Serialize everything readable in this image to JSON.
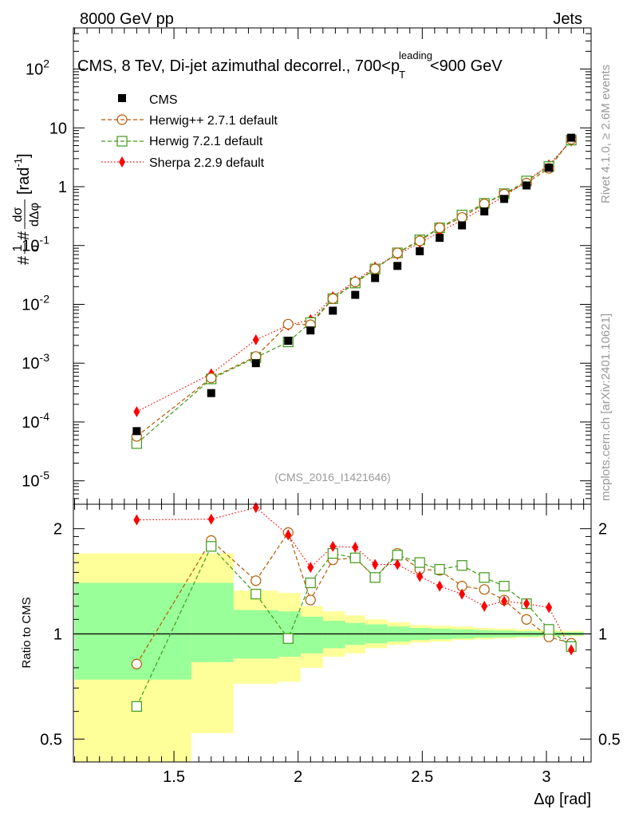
{
  "header": {
    "left_label": "8000 GeV pp",
    "right_label": "Jets",
    "title": "CMS, 8 TeV, Di-jet azimuthal decorrel., 700<p",
    "title_sup": "leading",
    "title_sub": "T",
    "title_end": "<900 GeV",
    "side_label_top": "Rivet 4.1.0, ≥ 2.6M events",
    "side_label_bottom": "mcplots.cern.ch [arXiv:2401.10621]",
    "analysis_id": "(CMS_2016_I1421646)"
  },
  "colors": {
    "cms": "#000000",
    "herwig271": "#b35900",
    "herwig721": "#3d9a19",
    "sherpa": "#ff0000",
    "band_yellow": "#ffff99",
    "band_green": "#99ff99"
  },
  "chart_data": [
    {
      "type": "scatter",
      "panel": "main",
      "ylabel": "#1/σ #dσ/dΔφ [rad⁻¹]",
      "ylabel_parts": {
        "a": "#",
        "one": "1",
        "sigma": "σ",
        "b": "#",
        "dsigma": "dσ",
        "dphi": "dΔφ",
        "unit": "[rad",
        "unit_exp": "-1",
        "unit_end": "]"
      },
      "yscale": "log",
      "ylim": [
        4e-06,
        500
      ],
      "xlim": [
        1.095,
        3.18
      ],
      "y_ticks": [
        {
          "v": 1e-05,
          "base": "10",
          "exp": "-5"
        },
        {
          "v": 0.0001,
          "base": "10",
          "exp": "-4"
        },
        {
          "v": 0.001,
          "base": "10",
          "exp": "-3"
        },
        {
          "v": 0.01,
          "base": "10",
          "exp": "-2"
        },
        {
          "v": 0.1,
          "base": "10",
          "exp": "-1"
        },
        {
          "v": 1,
          "base": "1",
          "exp": ""
        },
        {
          "v": 10,
          "base": "10",
          "exp": ""
        },
        {
          "v": 100,
          "base": "10",
          "exp": "2"
        }
      ],
      "legend": [
        "CMS",
        "Herwig++ 2.7.1 default",
        "Herwig 7.2.1 default",
        "Sherpa 2.2.9 default"
      ],
      "x": [
        1.35,
        1.65,
        1.83,
        1.96,
        2.05,
        2.14,
        2.23,
        2.31,
        2.4,
        2.49,
        2.57,
        2.66,
        2.75,
        2.83,
        2.92,
        3.01,
        3.1
      ],
      "series": [
        {
          "name": "CMS",
          "key": "cms",
          "marker": "square-filled",
          "values": [
            7e-05,
            0.00031,
            0.001,
            0.0024,
            0.0036,
            0.0078,
            0.0145,
            0.028,
            0.045,
            0.08,
            0.135,
            0.22,
            0.38,
            0.62,
            1.05,
            2.1,
            6.8
          ]
        },
        {
          "name": "Herwig++ 2.7.1 default",
          "key": "herwig271",
          "marker": "circle-open",
          "values": [
            5.7e-05,
            0.00056,
            0.0013,
            0.0046,
            0.0045,
            0.0125,
            0.024,
            0.04,
            0.075,
            0.12,
            0.2,
            0.3,
            0.51,
            0.75,
            1.15,
            2.05,
            6.4
          ]
        },
        {
          "name": "Herwig 7.2.1 default",
          "key": "herwig721",
          "marker": "square-open",
          "values": [
            4.3e-05,
            0.00054,
            0.00125,
            0.0023,
            0.0049,
            0.0125,
            0.023,
            0.04,
            0.075,
            0.125,
            0.2,
            0.33,
            0.52,
            0.76,
            1.25,
            2.2,
            6.2
          ]
        },
        {
          "name": "Sherpa 2.2.9 default",
          "key": "sherpa",
          "marker": "diamond-filled",
          "values": [
            0.00015,
            0.00066,
            0.0025,
            0.0044,
            0.0055,
            0.0135,
            0.025,
            0.043,
            0.071,
            0.11,
            0.17,
            0.27,
            0.44,
            0.68,
            1.25,
            2.35,
            6.0
          ]
        }
      ]
    },
    {
      "type": "line",
      "panel": "ratio",
      "ylabel": "Ratio to CMS",
      "xlabel": "Δφ [rad]",
      "yscale": "log",
      "ylim": [
        0.43,
        2.35
      ],
      "xlim": [
        1.095,
        3.18
      ],
      "x_ticks": [
        1.5,
        2,
        2.5,
        3
      ],
      "x_tick_labels": [
        "1.5",
        "2",
        "2.5",
        "3"
      ],
      "y_ticks": [
        0.5,
        1,
        2
      ],
      "y_tick_labels": [
        "0.5",
        "1",
        "2"
      ],
      "reference": 1,
      "bands": {
        "x_edges": [
          1.1,
          1.57,
          1.74,
          1.92,
          2.01,
          2.1,
          2.19,
          2.27,
          2.36,
          2.45,
          2.53,
          2.62,
          2.71,
          2.79,
          2.88,
          2.97,
          3.06,
          3.15
        ],
        "yellow": [
          [
            0.35,
            1.7
          ],
          [
            0.52,
            1.7
          ],
          [
            0.72,
            1.33
          ],
          [
            0.73,
            1.31
          ],
          [
            0.8,
            1.2
          ],
          [
            0.86,
            1.16
          ],
          [
            0.88,
            1.13
          ],
          [
            0.91,
            1.1
          ],
          [
            0.93,
            1.08
          ],
          [
            0.945,
            1.06
          ],
          [
            0.95,
            1.055
          ],
          [
            0.96,
            1.05
          ],
          [
            0.965,
            1.04
          ],
          [
            0.97,
            1.035
          ],
          [
            0.975,
            1.03
          ],
          [
            0.98,
            1.025
          ],
          [
            0.985,
            1.02
          ]
        ],
        "green": [
          [
            0.74,
            1.4
          ],
          [
            0.83,
            1.4
          ],
          [
            0.85,
            1.17
          ],
          [
            0.86,
            1.16
          ],
          [
            0.88,
            1.12
          ],
          [
            0.91,
            1.09
          ],
          [
            0.93,
            1.075
          ],
          [
            0.94,
            1.065
          ],
          [
            0.95,
            1.05
          ],
          [
            0.96,
            1.04
          ],
          [
            0.965,
            1.035
          ],
          [
            0.97,
            1.03
          ],
          [
            0.975,
            1.025
          ],
          [
            0.978,
            1.022
          ],
          [
            0.982,
            1.018
          ],
          [
            0.985,
            1.015
          ],
          [
            0.99,
            1.012
          ]
        ]
      },
      "series": [
        {
          "name": "Herwig++ 2.7.1 default",
          "key": "herwig271",
          "marker": "circle-open",
          "values": [
            0.82,
            1.85,
            1.42,
            1.95,
            1.25,
            1.63,
            1.65,
            1.45,
            1.7,
            1.53,
            1.52,
            1.37,
            1.34,
            1.25,
            1.1,
            0.98,
            0.94
          ]
        },
        {
          "name": "Herwig 7.2.1 default",
          "key": "herwig721",
          "marker": "square-open",
          "values": [
            0.62,
            1.78,
            1.3,
            0.97,
            1.4,
            1.7,
            1.65,
            1.45,
            1.68,
            1.6,
            1.53,
            1.57,
            1.45,
            1.37,
            1.22,
            1.03,
            0.92
          ]
        },
        {
          "name": "Sherpa 2.2.9 default",
          "key": "sherpa",
          "marker": "diamond-filled",
          "values": [
            2.12,
            2.13,
            2.3,
            1.92,
            1.55,
            1.78,
            1.77,
            1.58,
            1.58,
            1.46,
            1.37,
            1.3,
            1.2,
            1.24,
            1.22,
            1.19,
            0.9
          ]
        }
      ]
    }
  ]
}
